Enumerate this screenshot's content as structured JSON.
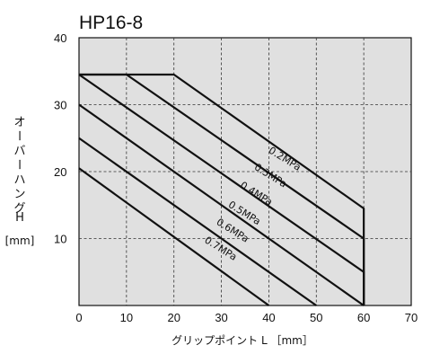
{
  "chart_data": {
    "type": "line",
    "title": "HP16-8",
    "xlabel": "グリップポイント L ［mm］",
    "ylabel_text": "オーバーハング",
    "ylabel_var": "H",
    "ylabel_unit": "[mm]",
    "xlim": [
      0,
      70
    ],
    "ylim": [
      0,
      40
    ],
    "grid": true,
    "xticks": [
      "0",
      "10",
      "20",
      "30",
      "40",
      "50",
      "60",
      "70"
    ],
    "yticks": [
      "10",
      "20",
      "30",
      "40"
    ],
    "series": [
      {
        "name": "0.2MPa",
        "x": [
          0,
          20,
          60,
          60
        ],
        "y": [
          34.5,
          34.5,
          14.5,
          0
        ]
      },
      {
        "name": "0.3MPa",
        "x": [
          0,
          10,
          60,
          60
        ],
        "y": [
          34.5,
          34.5,
          10,
          0
        ]
      },
      {
        "name": "0.4MPa",
        "x": [
          0,
          60,
          60
        ],
        "y": [
          34.5,
          5,
          0
        ]
      },
      {
        "name": "0.5MPa",
        "x": [
          0,
          60
        ],
        "y": [
          30,
          0
        ]
      },
      {
        "name": "0.6MPa",
        "x": [
          0,
          50
        ],
        "y": [
          25,
          0
        ]
      },
      {
        "name": "0.7MPa",
        "x": [
          0,
          40
        ],
        "y": [
          20.5,
          0
        ]
      }
    ]
  }
}
